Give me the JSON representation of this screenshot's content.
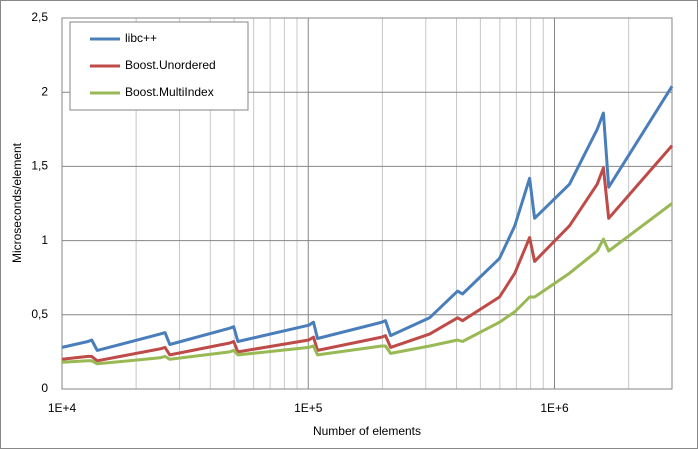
{
  "chart_data": {
    "type": "line",
    "x_label": "Number of elements",
    "y_label": "Microseconds/element",
    "x_log": true,
    "grid": true,
    "legend": "top-left",
    "xlim": [
      10000,
      3000000
    ],
    "xticks": [
      {
        "value": 10000,
        "label": "1E+4"
      },
      {
        "value": 100000,
        "label": "1E+5"
      },
      {
        "value": 1000000,
        "label": "1E+6"
      }
    ],
    "x_minor_ticks": [
      20000,
      30000,
      40000,
      50000,
      60000,
      70000,
      80000,
      90000,
      200000,
      300000,
      400000,
      500000,
      600000,
      700000,
      800000,
      900000,
      2000000
    ],
    "ylim": [
      0,
      2.5
    ],
    "yticks": [
      0,
      {
        "value": 0.5,
        "label": "0,5"
      },
      1,
      {
        "value": 1.5,
        "label": "1,5"
      },
      2,
      {
        "value": 2.5,
        "label": "2,5"
      }
    ],
    "x": [
      10000,
      12750,
      13200,
      13900,
      25000,
      26200,
      27400,
      48000,
      49800,
      51800,
      100500,
      105000,
      109000,
      199000,
      206000,
      216000,
      311000,
      404000,
      423000,
      598000,
      690000,
      792000,
      830000,
      1150000,
      1490000,
      1580000,
      1660000,
      3000000
    ],
    "series": [
      {
        "name": "libc++",
        "color": "#4a7ebb",
        "values": [
          0.28,
          0.32,
          0.33,
          0.26,
          0.37,
          0.38,
          0.3,
          0.41,
          0.42,
          0.32,
          0.43,
          0.45,
          0.34,
          0.45,
          0.46,
          0.36,
          0.48,
          0.66,
          0.64,
          0.88,
          1.1,
          1.42,
          1.15,
          1.38,
          1.75,
          1.86,
          1.36,
          2.04
        ]
      },
      {
        "name": "Boost.Unordered",
        "color": "#be4b48",
        "values": [
          0.2,
          0.22,
          0.22,
          0.19,
          0.27,
          0.28,
          0.23,
          0.31,
          0.32,
          0.25,
          0.33,
          0.35,
          0.26,
          0.35,
          0.36,
          0.28,
          0.37,
          0.48,
          0.46,
          0.62,
          0.78,
          1.02,
          0.86,
          1.1,
          1.38,
          1.49,
          1.15,
          1.64
        ]
      },
      {
        "name": "Boost.MultiIndex",
        "color": "#98b954",
        "values": [
          0.18,
          0.19,
          0.19,
          0.17,
          0.21,
          0.22,
          0.2,
          0.25,
          0.26,
          0.23,
          0.28,
          0.29,
          0.23,
          0.29,
          0.29,
          0.24,
          0.29,
          0.33,
          0.32,
          0.45,
          0.52,
          0.62,
          0.62,
          0.78,
          0.93,
          1.01,
          0.93,
          1.25
        ]
      }
    ]
  }
}
